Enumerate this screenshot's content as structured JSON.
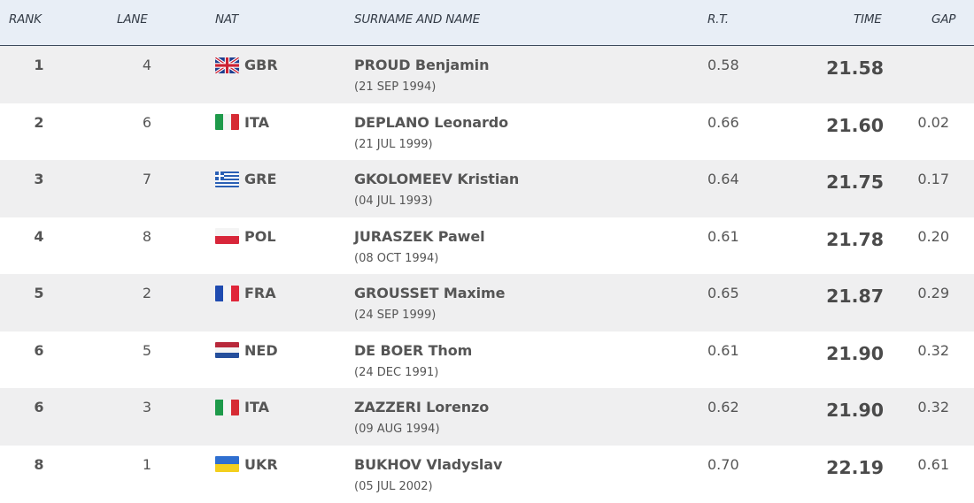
{
  "headers": {
    "rank": "RANK",
    "lane": "LANE",
    "nat": "NAT",
    "name": "SURNAME AND NAME",
    "rt": "R.T.",
    "time": "TIME",
    "gap": "GAP"
  },
  "rows": [
    {
      "rank": "1",
      "lane": "4",
      "nat": "GBR",
      "flag_icon": "gbr-flag-icon",
      "name": "PROUD Benjamin",
      "dob": "(21 SEP 1994)",
      "rt": "0.58",
      "time": "21.58",
      "gap": ""
    },
    {
      "rank": "2",
      "lane": "6",
      "nat": "ITA",
      "flag_icon": "ita-flag-icon",
      "name": "DEPLANO Leonardo",
      "dob": "(21 JUL 1999)",
      "rt": "0.66",
      "time": "21.60",
      "gap": "0.02"
    },
    {
      "rank": "3",
      "lane": "7",
      "nat": "GRE",
      "flag_icon": "gre-flag-icon",
      "name": "GKOLOMEEV Kristian",
      "dob": "(04 JUL 1993)",
      "rt": "0.64",
      "time": "21.75",
      "gap": "0.17"
    },
    {
      "rank": "4",
      "lane": "8",
      "nat": "POL",
      "flag_icon": "pol-flag-icon",
      "name": "JURASZEK Pawel",
      "dob": "(08 OCT 1994)",
      "rt": "0.61",
      "time": "21.78",
      "gap": "0.20"
    },
    {
      "rank": "5",
      "lane": "2",
      "nat": "FRA",
      "flag_icon": "fra-flag-icon",
      "name": "GROUSSET Maxime",
      "dob": "(24 SEP 1999)",
      "rt": "0.65",
      "time": "21.87",
      "gap": "0.29"
    },
    {
      "rank": "6",
      "lane": "5",
      "nat": "NED",
      "flag_icon": "ned-flag-icon",
      "name": "DE BOER Thom",
      "dob": "(24 DEC 1991)",
      "rt": "0.61",
      "time": "21.90",
      "gap": "0.32"
    },
    {
      "rank": "6",
      "lane": "3",
      "nat": "ITA",
      "flag_icon": "ita-flag-icon",
      "name": "ZAZZERI Lorenzo",
      "dob": "(09 AUG 1994)",
      "rt": "0.62",
      "time": "21.90",
      "gap": "0.32"
    },
    {
      "rank": "8",
      "lane": "1",
      "nat": "UKR",
      "flag_icon": "ukr-flag-icon",
      "name": "BUKHOV Vladyslav",
      "dob": "(05 JUL 2002)",
      "rt": "0.70",
      "time": "22.19",
      "gap": "0.61"
    }
  ],
  "colors": {
    "header_bg": "#e8eef6",
    "header_rule": "#3c4a5c",
    "stripe_bg": "#efeff0",
    "text": "#555555"
  }
}
